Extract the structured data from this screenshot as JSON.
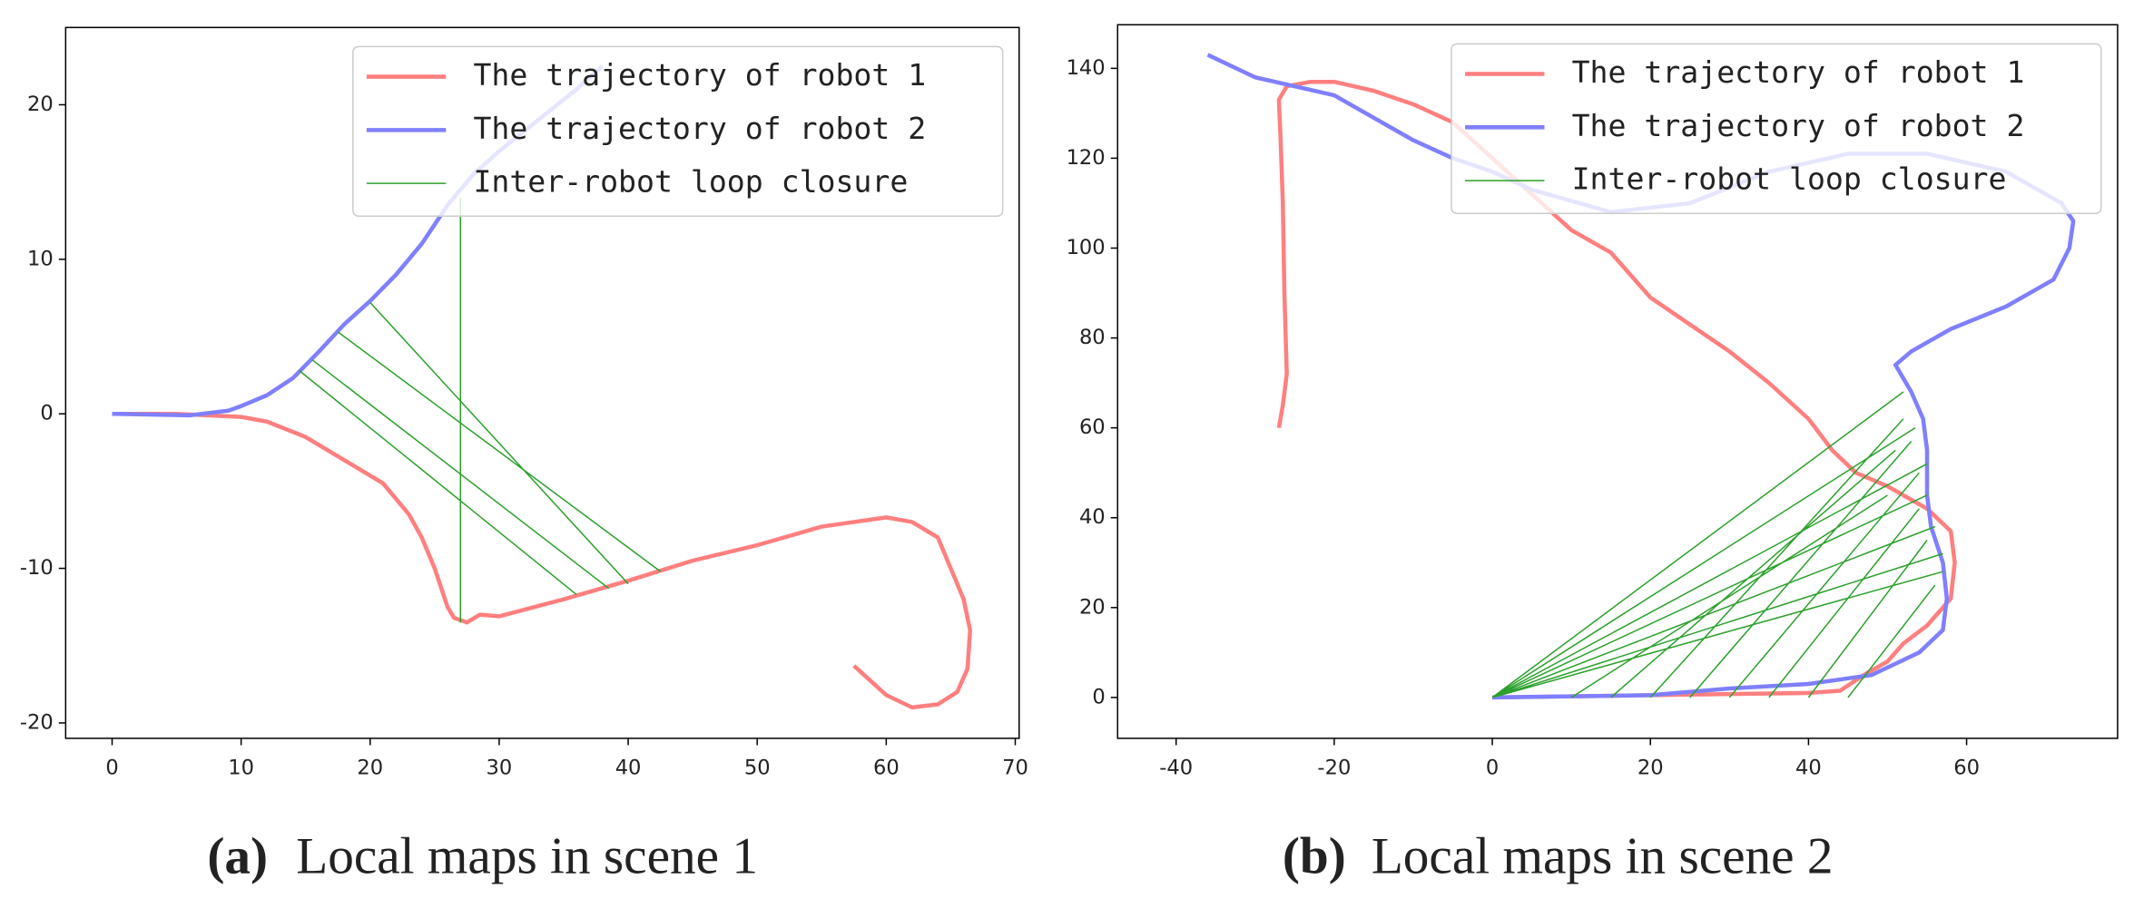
{
  "chart_data": [
    {
      "type": "line",
      "caption_label": "(a)",
      "caption": "Local maps in scene 1",
      "xlim": [
        -3.6,
        70.3
      ],
      "xticks": [
        0,
        10,
        20,
        30,
        40,
        50,
        60,
        70
      ],
      "ylim": [
        -21,
        25
      ],
      "yticks": [
        -20,
        -10,
        0,
        10,
        20
      ],
      "legend": "upper right",
      "series": [
        {
          "name": "The trajectory of robot 1",
          "color": "#ff7f7f",
          "width": 3,
          "x": [
            0,
            5,
            10,
            12,
            15,
            18,
            21,
            23,
            24,
            25,
            26,
            26.5,
            27.5,
            28.5,
            30,
            35,
            40,
            45,
            50,
            55,
            60,
            62,
            64,
            65,
            66,
            66.5,
            66.3,
            65.5,
            64,
            62,
            60,
            57.5
          ],
          "values": [
            0,
            0,
            -0.2,
            -0.5,
            -1.5,
            -3,
            -4.5,
            -6.5,
            -8,
            -10,
            -12.5,
            -13.2,
            -13.5,
            -13,
            -13.1,
            -12,
            -10.8,
            -9.5,
            -8.5,
            -7.3,
            -6.7,
            -7,
            -8,
            -10,
            -12,
            -14,
            -16.5,
            -18,
            -18.8,
            -19,
            -18.2,
            -16.3
          ]
        },
        {
          "name": "The trajectory of robot 2",
          "color": "#7f7fff",
          "width": 3,
          "x": [
            0,
            6,
            9,
            10,
            12,
            14,
            16,
            18,
            20,
            22,
            24,
            26,
            28,
            30,
            33,
            36,
            38
          ],
          "values": [
            0,
            -0.1,
            0.2,
            0.5,
            1.2,
            2.3,
            4,
            5.8,
            7.3,
            9,
            11,
            13.5,
            15.5,
            17,
            19,
            21,
            22.5
          ]
        },
        {
          "name": "Inter-robot loop closure",
          "color": "#2ca02c",
          "width": 1,
          "x": [
            27,
            27,
            null,
            20,
            40,
            null,
            17.5,
            42.5,
            null,
            15.5,
            38.5,
            null,
            14.5,
            36
          ],
          "values": [
            14,
            -13.5,
            null,
            7.2,
            -11,
            null,
            5.3,
            -10.2,
            null,
            3.5,
            -11.3,
            null,
            2.8,
            -11.7
          ]
        }
      ]
    },
    {
      "type": "line",
      "caption_label": "(b)",
      "caption": "Local maps in scene 2",
      "xlim": [
        -47.4,
        79.1
      ],
      "xticks": [
        -40,
        -20,
        0,
        20,
        40,
        60
      ],
      "ylim": [
        -9.1,
        149.7
      ],
      "yticks": [
        0,
        20,
        40,
        60,
        80,
        100,
        120,
        140
      ],
      "legend": "upper right",
      "series": [
        {
          "name": "The trajectory of robot 1",
          "color": "#ff7f7f",
          "width": 3,
          "x": [
            -27,
            -26.5,
            -26,
            -26.3,
            -26.5,
            -26.8,
            -27,
            -26,
            -23,
            -20,
            -15,
            -10,
            -5,
            0,
            5,
            10,
            15,
            20,
            25,
            30,
            35,
            40,
            43,
            46,
            50,
            55,
            58,
            58.5,
            58,
            55,
            52,
            50,
            47,
            44,
            40,
            20,
            0
          ],
          "values": [
            60,
            65,
            72,
            90,
            110,
            125,
            133,
            136,
            137,
            137,
            135,
            132,
            128,
            120,
            112,
            104,
            99,
            89,
            83,
            77,
            70,
            62,
            55,
            50,
            47,
            42,
            37,
            30,
            22,
            16,
            12,
            8,
            5,
            1.5,
            1,
            0.5,
            0
          ]
        },
        {
          "name": "The trajectory of robot 2",
          "color": "#7f7fff",
          "width": 3,
          "x": [
            -36,
            -30,
            -20,
            -10,
            -5,
            0,
            5,
            15,
            25,
            35,
            45,
            55,
            65,
            72,
            73.5,
            73,
            71,
            65,
            58,
            53,
            51,
            53,
            54.5,
            55,
            55,
            55.5,
            57,
            57.5,
            57,
            54,
            48,
            40,
            30,
            20,
            0
          ],
          "values": [
            143,
            138,
            134,
            124,
            120,
            117,
            113,
            108,
            110,
            117,
            121,
            121,
            117,
            110,
            106,
            100,
            93,
            87,
            82,
            77,
            74,
            68,
            62,
            55,
            45,
            38,
            30,
            22,
            15,
            10,
            5,
            3,
            2,
            0.5,
            0
          ]
        },
        {
          "name": "Inter-robot loop closure",
          "color": "#2ca02c",
          "width": 1,
          "x": [
            0,
            52,
            null,
            0,
            53.5,
            null,
            0,
            55,
            null,
            0,
            55,
            null,
            0,
            56,
            null,
            0,
            57,
            null,
            0,
            57,
            null,
            10,
            50,
            null,
            15,
            51,
            null,
            20,
            52,
            null,
            25,
            53,
            null,
            30,
            54,
            null,
            35,
            54,
            null,
            40,
            55,
            null,
            45,
            56
          ],
          "values": [
            0,
            68,
            null,
            0,
            60,
            null,
            0,
            52,
            null,
            0,
            45,
            null,
            0,
            38,
            null,
            0,
            32,
            null,
            0,
            28,
            null,
            0,
            45,
            null,
            0,
            55,
            null,
            0,
            62,
            null,
            0,
            57,
            null,
            0,
            50,
            null,
            0,
            42,
            null,
            0,
            35,
            null,
            0,
            25
          ]
        }
      ]
    }
  ]
}
